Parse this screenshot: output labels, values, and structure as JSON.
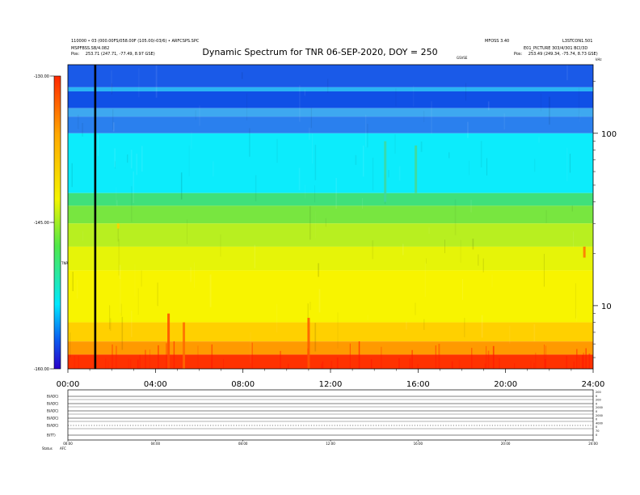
{
  "chart_data": {
    "type": "heatmap",
    "title": "Dynamic Spectrum for TNR 06-SEP-2020, DOY = 250",
    "x_ticks": [
      "00:00",
      "04:00",
      "08:00",
      "12:00",
      "16:00",
      "20:00",
      "24:00"
    ],
    "y_ticks_right": [
      "100",
      "10"
    ],
    "y_scale": "log",
    "y_range": [
      4.3,
      250
    ],
    "colorbar_ticks": [
      "-130.00",
      "-145.00",
      "-160.00"
    ],
    "colorbar_range": [
      -160,
      -130
    ],
    "colorbar_label": "TNR",
    "colormap": [
      "#2a00c8",
      "#0b5cf0",
      "#00e8ff",
      "#50e848",
      "#f4f400",
      "#ffa800",
      "#ff2800"
    ],
    "right_top_label": "kHz",
    "right_bar_label": "GSVSE",
    "bands": [
      {
        "from": 250,
        "to": 185,
        "color": "#1a5ae8"
      },
      {
        "from": 185,
        "to": 175,
        "color": "#2ab4f4"
      },
      {
        "from": 175,
        "to": 140,
        "color": "#1050e6"
      },
      {
        "from": 140,
        "to": 125,
        "color": "#3ea8f0"
      },
      {
        "from": 125,
        "to": 100,
        "color": "#2a80ee"
      },
      {
        "from": 100,
        "to": 45,
        "color": "#0cecfc"
      },
      {
        "from": 45,
        "to": 38,
        "color": "#40e07a"
      },
      {
        "from": 38,
        "to": 30,
        "color": "#78e640"
      },
      {
        "from": 30,
        "to": 22,
        "color": "#b8ef20"
      },
      {
        "from": 22,
        "to": 16,
        "color": "#e6f408"
      },
      {
        "from": 16,
        "to": 8,
        "color": "#f8f400"
      },
      {
        "from": 8,
        "to": 6.2,
        "color": "#ffd000"
      },
      {
        "from": 6.2,
        "to": 5.2,
        "color": "#ff9a00"
      },
      {
        "from": 5.2,
        "to": 4.3,
        "color": "#ff3200"
      }
    ],
    "marker_line_hour": 1.25,
    "bursts": [
      {
        "hour": 4.6,
        "from": 4.3,
        "to": 9.0,
        "color": "#ff4a00"
      },
      {
        "hour": 5.3,
        "from": 4.3,
        "to": 8.0,
        "color": "#ff6a00"
      },
      {
        "hour": 11.0,
        "from": 4.3,
        "to": 8.5,
        "color": "#ff5a00"
      },
      {
        "hour": 14.5,
        "from": 40,
        "to": 90,
        "color": "#40d8a0"
      },
      {
        "hour": 15.9,
        "from": 45,
        "to": 85,
        "color": "#48d890"
      },
      {
        "hour": 23.6,
        "from": 19,
        "to": 22,
        "color": "#ff7000"
      },
      {
        "hour": 2.3,
        "from": 28,
        "to": 30,
        "color": "#ffd000"
      }
    ],
    "bottom_panel": {
      "x_ticks": [
        "00:00",
        "04:00",
        "08:00",
        "12:00",
        "16:00",
        "20:00",
        "24:00"
      ],
      "row_labels": [
        "B(ADC)",
        "B(ADC)",
        "B(ADC)",
        "B(ADC)",
        "B(ADC)",
        "B(TT)"
      ],
      "right_labels": [
        "200",
        "0",
        "200",
        "0",
        "2000",
        "0",
        "2000",
        "0",
        "4000",
        "0",
        "70",
        "0"
      ],
      "status_label": "Status",
      "status_value": "AFC"
    }
  },
  "header": {
    "left_line1": "110000 • 03 (000.00FS/058.00F (105.00/-03/6) • ARFCSPS.SPC",
    "left_line2": "MSPFBSS.SB/4.082",
    "left_pos_label": "Pos:",
    "left_pos_value": "253.71 (247.71, -77.49, 8.97 GSE)",
    "mid_right": "MFOSS 3.40",
    "right_line1": "L3STCON1.501",
    "right_line2": "E01_PICTURE 303/4/301 BCI/3D",
    "right_pos_label": "Pos:",
    "right_pos_value": "253.49 (249.34, -75.74, 8.73 GSE)"
  }
}
